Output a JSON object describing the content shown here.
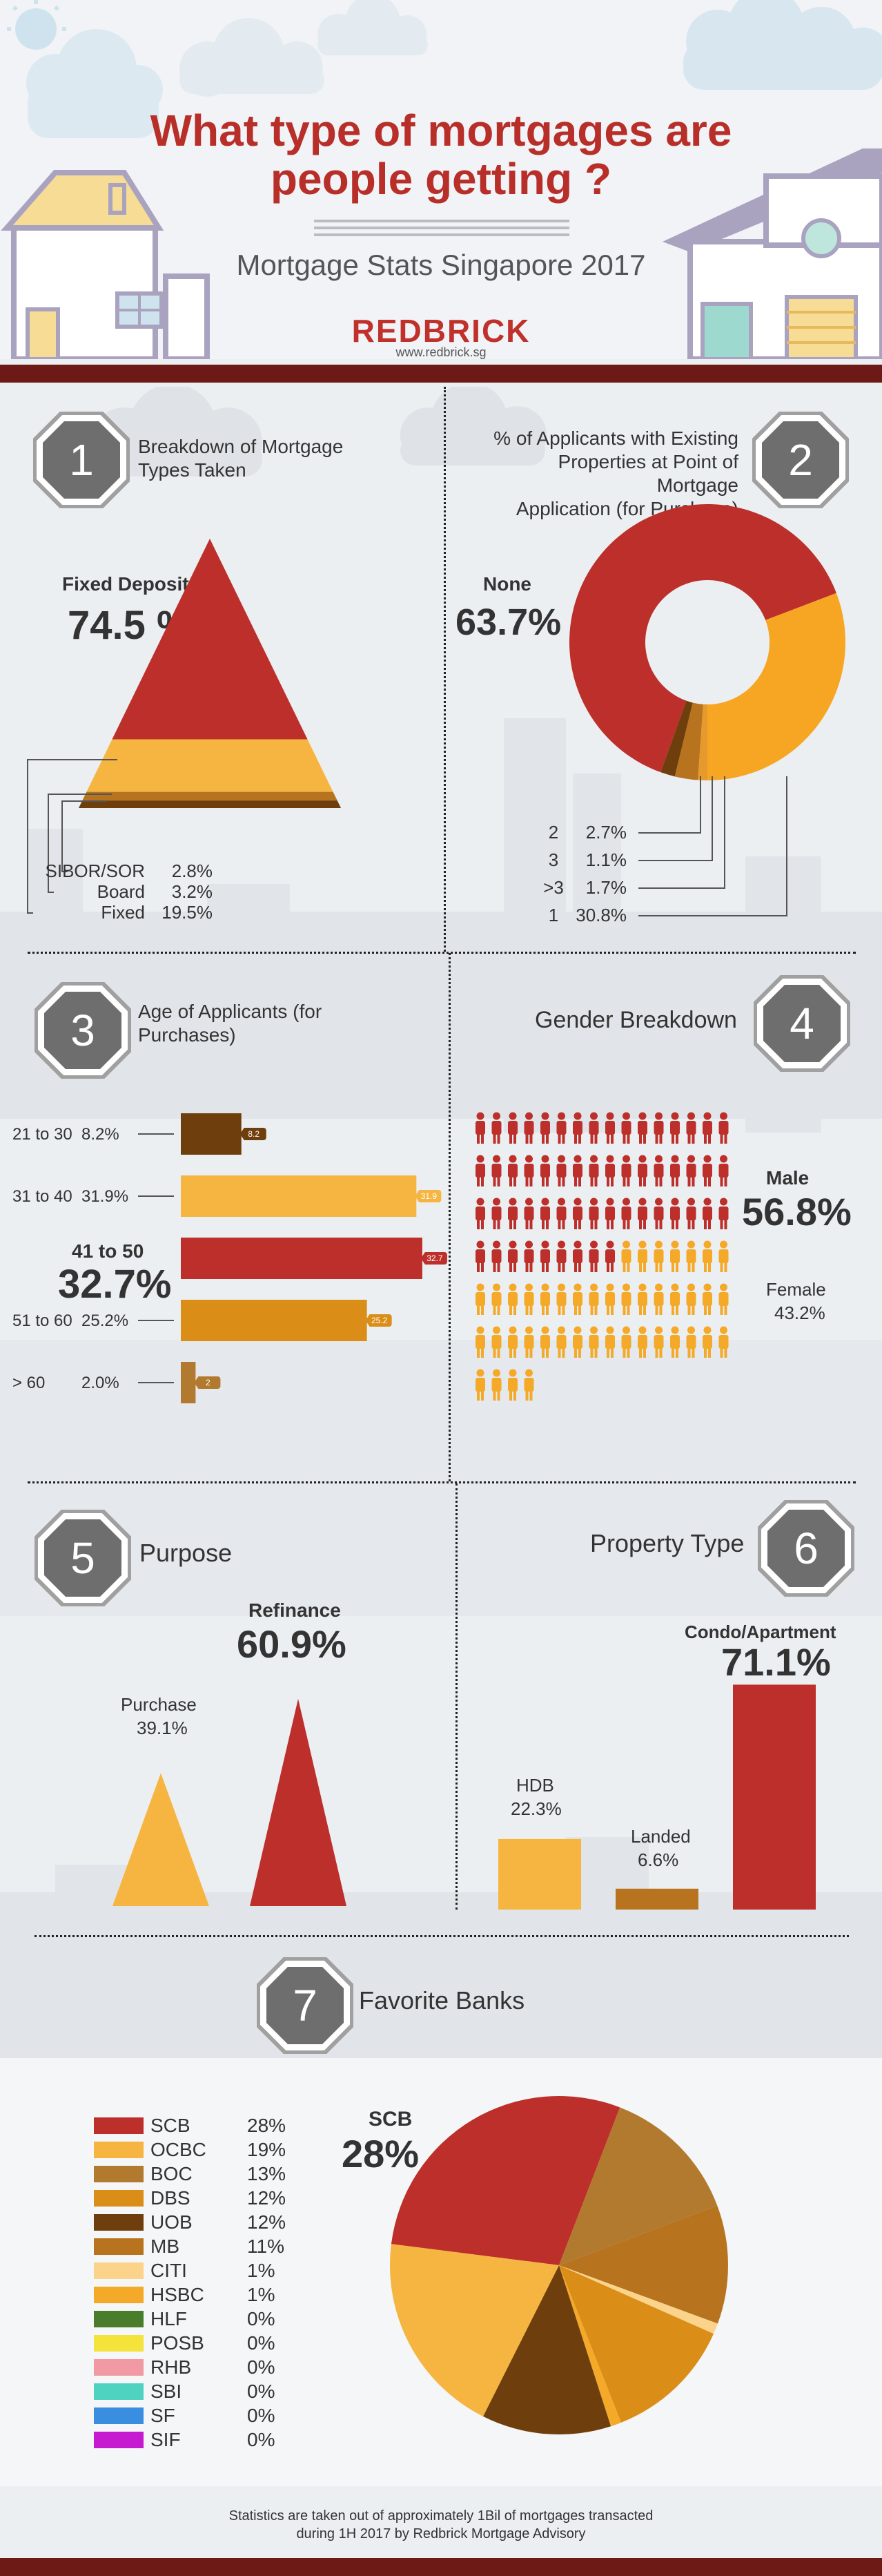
{
  "header": {
    "title_line1": "What type of mortgages are",
    "title_line2": "people getting ?",
    "subtitle": "Mortgage Stats Singapore 2017",
    "brand": "REDBRICK",
    "url": "www.redbrick.sg"
  },
  "sections": {
    "s1": {
      "num": "1",
      "title_l1": "Breakdown of Mortgage",
      "title_l2": "Types Taken",
      "hl_label": "Fixed Deposit",
      "hl_value": "74.5 %"
    },
    "s2": {
      "num": "2",
      "title_l1": "% of Applicants with Existing",
      "title_l2": "Properties at Point of Mortgage",
      "title_l3": "Application (for Purchase)",
      "hl_label": "None",
      "hl_value": "63.7%"
    },
    "s3": {
      "num": "3",
      "title_l1": "Age of Applicants (for",
      "title_l2": "Purchases)",
      "hl_label": "41 to 50",
      "hl_value": "32.7%"
    },
    "s4": {
      "num": "4",
      "title": "Gender Breakdown",
      "male_label": "Male",
      "male_value": "56.8%",
      "female_label": "Female",
      "female_value": "43.2%"
    },
    "s5": {
      "num": "5",
      "title": "Purpose",
      "refi_label": "Refinance",
      "refi_value": "60.9%",
      "purchase_label": "Purchase",
      "purchase_value": "39.1%"
    },
    "s6": {
      "num": "6",
      "title": "Property Type",
      "condo_label": "Condo/Apartment",
      "condo_value": "71.1%",
      "hdb_label": "HDB",
      "hdb_value": "22.3%",
      "landed_label": "Landed",
      "landed_value": "6.6%"
    },
    "s7": {
      "num": "7",
      "title": "Favorite Banks",
      "hl_label": "SCB",
      "hl_value": "28%"
    }
  },
  "footer": {
    "line1": "Statistics are taken out of approximately 1Bil of mortgages transacted",
    "line2": "during 1H 2017 by Redbrick Mortgage Advisory"
  },
  "colors": {
    "red": "#bc2f2a",
    "yellow": "#f6b540",
    "orange": "#da8d17",
    "brown": "#6e3f0d",
    "tan": "#b27a2e",
    "dark": "#3e3e3e"
  },
  "chart_data": [
    {
      "type": "pyramid",
      "title": "Breakdown of Mortgage Types Taken",
      "categories": [
        "Fixed Deposit",
        "Fixed",
        "Board",
        "SIBOR/SOR"
      ],
      "labels": [
        "Fixed Deposit",
        "Fixed",
        "Board",
        "SIBOR/SOR"
      ],
      "value_labels": [
        "74.5 %",
        "19.5%",
        "3.2%",
        "2.8%"
      ],
      "values": [
        74.5,
        19.5,
        3.2,
        2.8
      ],
      "colors": [
        "#bc2f2a",
        "#f6b540",
        "#b8731f",
        "#6e3f0d"
      ]
    },
    {
      "type": "pie",
      "title": "% of Applicants with Existing Properties at Point of Mortgage Application (for Purchase)",
      "categories": [
        "None",
        "1",
        "2",
        "3",
        ">3"
      ],
      "labels": [
        "None",
        "1",
        "2",
        "3",
        ">3"
      ],
      "value_labels": [
        "63.7%",
        "30.8%",
        "2.7%",
        "1.1%",
        "1.7%"
      ],
      "values": [
        63.7,
        30.8,
        2.7,
        1.1,
        1.7
      ],
      "colors": [
        "#bc2f2a",
        "#f6a623",
        "#b8731f",
        "#e59a2b",
        "#6e3f0d"
      ]
    },
    {
      "type": "bar",
      "title": "Age of Applicants (for Purchases)",
      "categories": [
        "21 to 30",
        "31 to 40",
        "41 to 50",
        "51 to 60",
        "> 60"
      ],
      "labels": [
        "21 to 30",
        "31 to 40",
        "41 to 50",
        "51 to 60",
        "> 60"
      ],
      "value_labels": [
        "8.2%",
        "31.9%",
        "32.7%",
        "25.2%",
        "2.0%"
      ],
      "tag_labels": [
        "8.2",
        "31.9",
        "32.7",
        "25.2",
        "2"
      ],
      "values": [
        8.2,
        31.9,
        32.7,
        25.2,
        2.0
      ],
      "colors": [
        "#6e3f0d",
        "#f6b540",
        "#bc2f2a",
        "#da8d17",
        "#b27a2e"
      ]
    },
    {
      "type": "pictogram",
      "title": "Gender Breakdown",
      "categories": [
        "Male",
        "Female"
      ],
      "values": [
        56.8,
        43.2
      ],
      "colors": [
        "#bc2f2a",
        "#f4a928"
      ]
    },
    {
      "type": "triangle",
      "title": "Purpose",
      "categories": [
        "Purchase",
        "Refinance"
      ],
      "values": [
        39.1,
        60.9
      ],
      "colors": [
        "#f6b540",
        "#bc2f2a"
      ]
    },
    {
      "type": "bar",
      "title": "Property Type",
      "categories": [
        "HDB",
        "Landed",
        "Condo/Apartment"
      ],
      "values": [
        22.3,
        6.6,
        71.1
      ],
      "colors": [
        "#f6b540",
        "#b8731f",
        "#bc2f2a"
      ]
    },
    {
      "type": "pie",
      "title": "Favorite Banks",
      "categories": [
        "SCB",
        "OCBC",
        "BOC",
        "DBS",
        "UOB",
        "MB",
        "CITI",
        "HSBC",
        "HLF",
        "POSB",
        "RHB",
        "SBI",
        "SF",
        "SIF"
      ],
      "labels": [
        "SCB",
        "OCBC",
        "BOC",
        "DBS",
        "UOB",
        "MB",
        "CITI",
        "HSBC",
        "HLF",
        "POSB",
        "RHB",
        "SBI",
        "SF",
        "SIF"
      ],
      "value_labels": [
        "28%",
        "19%",
        "13%",
        "12%",
        "12%",
        "11%",
        "1%",
        "1%",
        "0%",
        "0%",
        "0%",
        "0%",
        "0%",
        "0%"
      ],
      "values": [
        28,
        19,
        13,
        12,
        12,
        11,
        1,
        1,
        0,
        0,
        0,
        0,
        0,
        0
      ],
      "colors": [
        "#bc2f2a",
        "#f6b540",
        "#b27a2e",
        "#da8d17",
        "#6e3f0d",
        "#b8731f",
        "#fcd38a",
        "#f4a928",
        "#4a7d2b",
        "#f3e33a",
        "#f29aa3",
        "#4dd3c0",
        "#3a8ee0",
        "#c61ad1"
      ]
    }
  ]
}
